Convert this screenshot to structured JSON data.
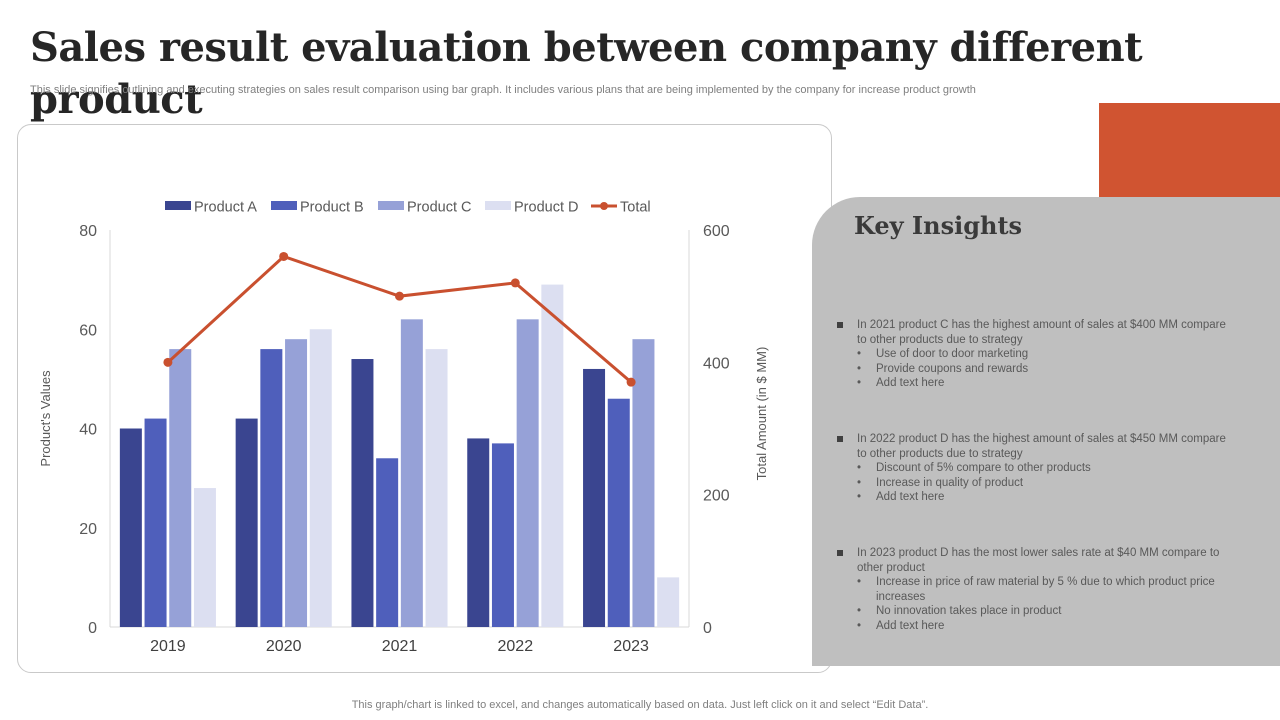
{
  "page": {
    "title": "Sales result evaluation between company different product",
    "subtitle": "This slide signifies outlining and executing strategies on sales result comparison using bar graph. It includes various plans that are being implemented by the company for increase product growth",
    "footer": "This graph/chart is linked to excel,  and changes automatically based on data. Just left click on it and select “Edit Data”."
  },
  "insights": {
    "title": "Key Insights",
    "items": [
      {
        "text": "In 2021 product C has the highest amount of sales at $400 MM compare to other products due to strategy",
        "bullets": [
          "Use of door to  door marketing",
          "Provide coupons and rewards",
          "Add text here"
        ]
      },
      {
        "text": "In 2022 product D has the highest amount of sales at $450 MM compare to other products due to strategy",
        "bullets": [
          "Discount of 5% compare to other products",
          "Increase in quality of product",
          "Add text here"
        ]
      },
      {
        "text": "In 2023 product D has the most lower sales rate at $40 MM  compare to other product",
        "bullets": [
          "Increase in price of raw material by 5 % due to which product price increases",
          "No innovation takes place in product",
          "Add text here"
        ]
      }
    ]
  },
  "colors": {
    "product_a": "#3a4590",
    "product_b": "#4f5fbb",
    "product_c": "#96a1d7",
    "product_d": "#dcdff1",
    "total": "#c9502f",
    "accent": "#d05431",
    "panel": "#bfbfbf"
  },
  "chart_data": {
    "type": "bar",
    "categories": [
      "2019",
      "2020",
      "2021",
      "2022",
      "2023"
    ],
    "series": [
      {
        "name": "Product A",
        "axis": "left",
        "values": [
          40,
          42,
          54,
          38,
          52
        ]
      },
      {
        "name": "Product B",
        "axis": "left",
        "values": [
          42,
          56,
          34,
          37,
          46
        ]
      },
      {
        "name": "Product C",
        "axis": "left",
        "values": [
          56,
          58,
          62,
          62,
          58
        ]
      },
      {
        "name": "Product D",
        "axis": "left",
        "values": [
          28,
          60,
          56,
          69,
          10
        ]
      }
    ],
    "line_series": {
      "name": "Total",
      "axis": "right",
      "values": [
        400,
        560,
        500,
        520,
        370
      ]
    },
    "ylabel": "Product's  Values",
    "ylabel_right": "Total Amount  (in $ MM)",
    "ylim": [
      0,
      80
    ],
    "yticks": [
      0,
      20,
      40,
      60,
      80
    ],
    "ylim_right": [
      0,
      600
    ],
    "yticks_right": [
      0,
      200,
      400,
      600
    ],
    "legend": "top",
    "grid": false
  }
}
